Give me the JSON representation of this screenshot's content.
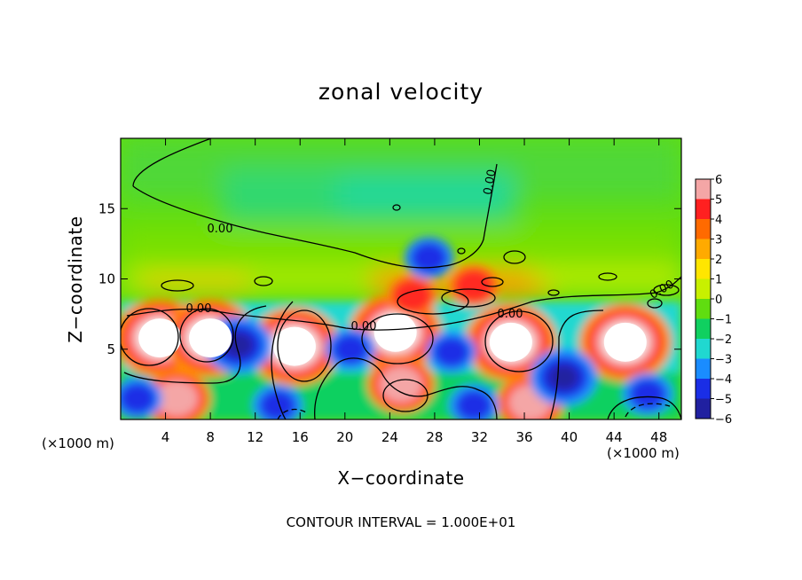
{
  "chart_data": {
    "type": "heatmap",
    "title": "zonal velocity",
    "xlabel": "X−coordinate",
    "ylabel": "Z−coordinate",
    "x_unit_left": "(×1000 m)",
    "x_unit_right": "(×1000 m)",
    "xlim": [
      0,
      50
    ],
    "ylim": [
      0,
      20
    ],
    "x_ticks": [
      4,
      8,
      12,
      16,
      20,
      24,
      28,
      32,
      36,
      40,
      44,
      48
    ],
    "y_ticks": [
      5,
      10,
      15
    ],
    "colorbar": {
      "levels": [
        6,
        5,
        4,
        3,
        2,
        1,
        0,
        -1,
        -2,
        -3,
        -4,
        -5,
        -6
      ],
      "colors": [
        "#f4a6a6",
        "#ff2020",
        "#ff6a00",
        "#ffaa00",
        "#ffe600",
        "#c8f000",
        "#60dd10",
        "#10d060",
        "#20d8d0",
        "#1a8cff",
        "#1a2ee6",
        "#2020a0",
        "#7000a8"
      ]
    },
    "contour_labels": [
      "0.00",
      "0.00",
      "0.00",
      "0.00",
      "0.00",
      "0.00"
    ],
    "footer": "CONTOUR INTERVAL = 1.000E+01",
    "features": [
      {
        "x": 3.5,
        "z": 5.8,
        "v": 9
      },
      {
        "x": 8,
        "z": 5.8,
        "v": 9
      },
      {
        "x": 15.5,
        "z": 5.2,
        "v": 9
      },
      {
        "x": 24.5,
        "z": 6.2,
        "v": 9
      },
      {
        "x": 34.8,
        "z": 5.5,
        "v": 9
      },
      {
        "x": 45,
        "z": 5.5,
        "v": 8
      },
      {
        "x": 25,
        "z": 2.5,
        "v": 6
      },
      {
        "x": 5,
        "z": 1.5,
        "v": 5
      },
      {
        "x": 36.5,
        "z": 1.2,
        "v": 5
      },
      {
        "x": 10.5,
        "z": 5.3,
        "v": -5
      },
      {
        "x": 20.5,
        "z": 5.0,
        "v": -4
      },
      {
        "x": 29.5,
        "z": 4.8,
        "v": -4
      },
      {
        "x": 39.5,
        "z": 3.0,
        "v": -5
      },
      {
        "x": 1.5,
        "z": 1.5,
        "v": -4
      },
      {
        "x": 14,
        "z": 1.0,
        "v": -3
      },
      {
        "x": 31.5,
        "z": 1.0,
        "v": -4
      },
      {
        "x": 47,
        "z": 1.8,
        "v": -4
      },
      {
        "x": 26,
        "z": 8.8,
        "v": 4
      },
      {
        "x": 31.5,
        "z": 9.5,
        "v": 4
      },
      {
        "x": 27.5,
        "z": 11.5,
        "v": -3
      },
      {
        "x": 30,
        "z": 17,
        "v": -1
      }
    ]
  }
}
